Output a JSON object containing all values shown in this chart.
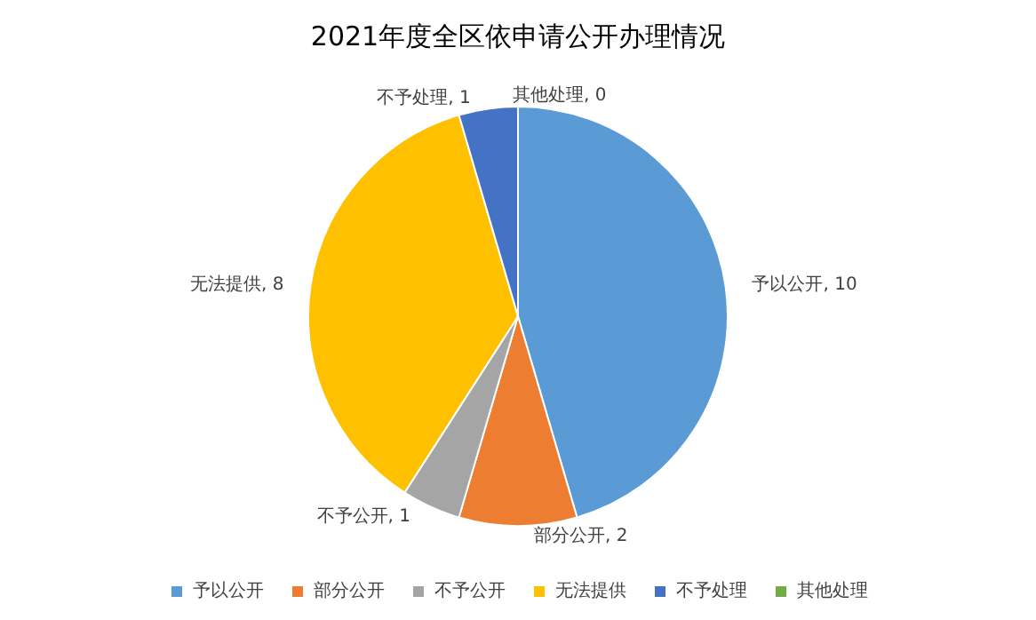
{
  "chart_data": {
    "type": "pie",
    "title": "2021年度全区依申请公开办理情况",
    "categories": [
      "予以公开",
      "部分公开",
      "不予公开",
      "无法提供",
      "不予处理",
      "其他处理"
    ],
    "values": [
      10,
      2,
      1,
      8,
      1,
      0
    ],
    "value_labels": [
      "予以公开, 10",
      "部分公开, 2",
      "不予公开, 1",
      "无法提供, 8",
      "不予处理, 1",
      "其他处理, 0"
    ],
    "colors": [
      "#5b9bd5",
      "#ed7d31",
      "#a5a5a5",
      "#ffc000",
      "#4472c4",
      "#70ad47"
    ],
    "legend": "bottom"
  }
}
